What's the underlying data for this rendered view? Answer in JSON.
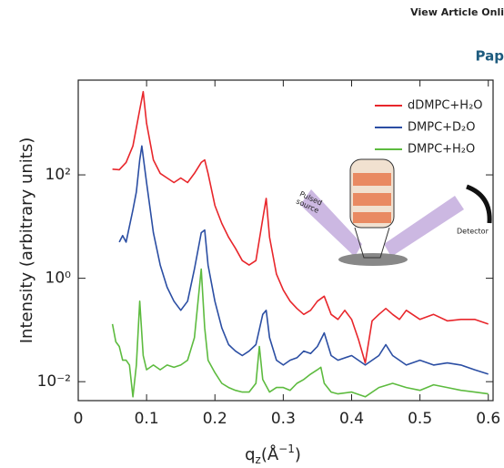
{
  "header": {
    "link": "View Article Onli",
    "section": "Pap"
  },
  "chart_data": {
    "type": "line",
    "ylabel": "Intensity (arbitrary units)",
    "xlabel": [
      "q",
      "z",
      "(Å",
      "−1",
      ")"
    ],
    "xlim": [
      0,
      0.607
    ],
    "xticks": [
      0,
      0.1,
      0.2,
      0.3,
      0.4,
      0.5,
      0.6
    ],
    "ylim": [
      0.0043,
      6800
    ],
    "log_y": true,
    "yticks": [
      {
        "value": 0.01,
        "label": "10⁻²"
      },
      {
        "value": 1,
        "label": "10⁰"
      },
      {
        "value": 100,
        "label": "10²"
      }
    ],
    "legend": "upper right",
    "series": [
      {
        "name": "dDMPC+H₂O",
        "color": "#e8262b",
        "x": [
          0.05,
          0.06,
          0.07,
          0.08,
          0.09,
          0.095,
          0.1,
          0.11,
          0.12,
          0.13,
          0.14,
          0.15,
          0.16,
          0.17,
          0.18,
          0.185,
          0.19,
          0.2,
          0.21,
          0.22,
          0.23,
          0.24,
          0.25,
          0.26,
          0.27,
          0.275,
          0.28,
          0.29,
          0.3,
          0.31,
          0.32,
          0.33,
          0.34,
          0.35,
          0.36,
          0.37,
          0.38,
          0.39,
          0.4,
          0.41,
          0.42,
          0.43,
          0.44,
          0.45,
          0.46,
          0.47,
          0.48,
          0.5,
          0.52,
          0.54,
          0.56,
          0.58,
          0.6
        ],
        "values": [
          129,
          126,
          174,
          363,
          1820,
          4070,
          1000,
          195,
          107,
          87,
          71,
          87,
          71,
          107,
          174,
          195,
          107,
          25.7,
          11.5,
          6.2,
          3.8,
          2.2,
          1.8,
          2.2,
          14,
          35,
          6.2,
          1.2,
          0.59,
          0.36,
          0.26,
          0.2,
          0.24,
          0.36,
          0.45,
          0.2,
          0.16,
          0.24,
          0.16,
          0.066,
          0.023,
          0.15,
          0.2,
          0.26,
          0.2,
          0.16,
          0.24,
          0.16,
          0.2,
          0.15,
          0.16,
          0.16,
          0.13
        ]
      },
      {
        "name": "DMPC+D₂O",
        "color": "#2b4ea3",
        "x": [
          0.06,
          0.065,
          0.07,
          0.08,
          0.085,
          0.09,
          0.093,
          0.1,
          0.11,
          0.12,
          0.13,
          0.14,
          0.15,
          0.16,
          0.17,
          0.18,
          0.185,
          0.19,
          0.2,
          0.21,
          0.22,
          0.23,
          0.24,
          0.25,
          0.26,
          0.27,
          0.275,
          0.28,
          0.29,
          0.3,
          0.31,
          0.32,
          0.33,
          0.34,
          0.35,
          0.36,
          0.37,
          0.38,
          0.4,
          0.42,
          0.44,
          0.45,
          0.46,
          0.48,
          0.5,
          0.52,
          0.54,
          0.56,
          0.58,
          0.6
        ],
        "values": [
          5,
          6.7,
          5,
          21,
          47,
          195,
          363,
          71,
          7.6,
          1.8,
          0.67,
          0.36,
          0.24,
          0.36,
          1.5,
          7.6,
          8.6,
          1.8,
          0.36,
          0.11,
          0.052,
          0.039,
          0.032,
          0.039,
          0.052,
          0.2,
          0.24,
          0.071,
          0.026,
          0.021,
          0.026,
          0.029,
          0.039,
          0.035,
          0.048,
          0.088,
          0.032,
          0.026,
          0.032,
          0.021,
          0.032,
          0.052,
          0.032,
          0.021,
          0.026,
          0.021,
          0.023,
          0.021,
          0.017,
          0.014
        ]
      },
      {
        "name": "DMPC+H₂O",
        "color": "#5dbb3f",
        "x": [
          0.05,
          0.055,
          0.06,
          0.065,
          0.07,
          0.075,
          0.08,
          0.085,
          0.09,
          0.095,
          0.1,
          0.11,
          0.12,
          0.13,
          0.14,
          0.15,
          0.16,
          0.17,
          0.18,
          0.185,
          0.19,
          0.2,
          0.21,
          0.22,
          0.23,
          0.24,
          0.25,
          0.26,
          0.265,
          0.27,
          0.28,
          0.29,
          0.3,
          0.31,
          0.32,
          0.33,
          0.34,
          0.35,
          0.355,
          0.36,
          0.37,
          0.38,
          0.4,
          0.42,
          0.44,
          0.46,
          0.48,
          0.5,
          0.52,
          0.54,
          0.56,
          0.58,
          0.6
        ],
        "values": [
          0.13,
          0.059,
          0.048,
          0.026,
          0.026,
          0.021,
          0.0051,
          0.021,
          0.36,
          0.032,
          0.017,
          0.021,
          0.017,
          0.021,
          0.019,
          0.021,
          0.026,
          0.071,
          1.5,
          0.11,
          0.026,
          0.015,
          0.0093,
          0.0077,
          0.0068,
          0.0063,
          0.0063,
          0.0093,
          0.048,
          0.011,
          0.0063,
          0.0077,
          0.0077,
          0.0068,
          0.0093,
          0.011,
          0.014,
          0.017,
          0.019,
          0.0093,
          0.0063,
          0.0058,
          0.0063,
          0.0051,
          0.0077,
          0.0093,
          0.0077,
          0.0068,
          0.0087,
          0.0077,
          0.0068,
          0.0063,
          0.0058
        ]
      }
    ]
  },
  "diagram": {
    "source_label": [
      "Pulsed",
      "source"
    ],
    "detector_label": "Detector"
  }
}
